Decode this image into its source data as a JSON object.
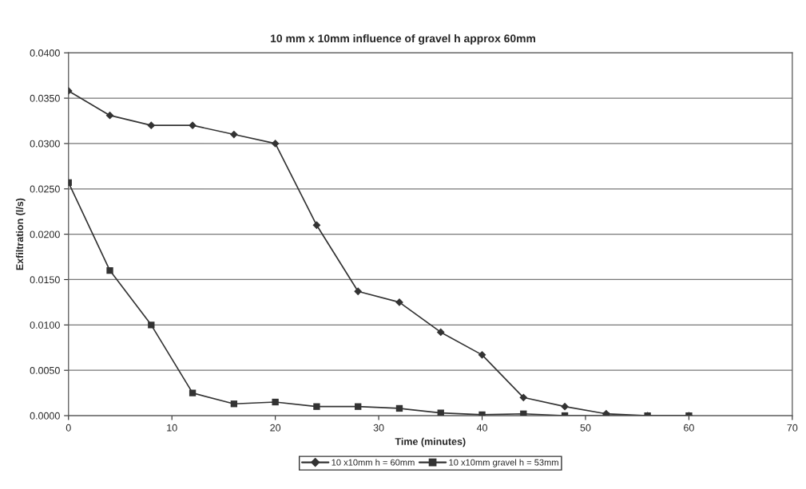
{
  "chart_data": {
    "type": "line",
    "title": "10 mm x 10mm influence of gravel h approx 60mm",
    "xlabel": "Time (minutes)",
    "ylabel": "Exfiltration (l/s)",
    "x": [
      0,
      4,
      8,
      12,
      16,
      20,
      24,
      28,
      32,
      36,
      40,
      44,
      48,
      52,
      56,
      60
    ],
    "series": [
      {
        "name": "10 x10mm h = 60mm",
        "color": "#333333",
        "marker": "diamond",
        "values": [
          0.0358,
          0.0331,
          0.032,
          0.032,
          0.031,
          0.03,
          0.021,
          0.0137,
          0.0125,
          0.0092,
          0.0067,
          0.002,
          0.001,
          0.0002,
          0.0,
          0.0
        ]
      },
      {
        "name": "10 x10mm gravel h = 53mm",
        "color": "#333333",
        "marker": "square",
        "values": [
          0.0257,
          0.016,
          0.01,
          0.0025,
          0.0013,
          0.0015,
          0.001,
          0.001,
          0.0008,
          0.0003,
          0.0001,
          0.0002,
          0.0,
          0.0,
          0.0,
          0.0
        ]
      }
    ],
    "xlim": [
      0,
      70
    ],
    "xticks": [
      0,
      10,
      20,
      30,
      40,
      50,
      60,
      70
    ],
    "ylim": [
      0,
      0.04
    ],
    "yticks": [
      {
        "value": 0,
        "label": "0.0000"
      },
      {
        "value": 0.005,
        "label": "0.0050"
      },
      {
        "value": 0.01,
        "label": "0.0100"
      },
      {
        "value": 0.015,
        "label": "0.0150"
      },
      {
        "value": 0.02,
        "label": "0.0200"
      },
      {
        "value": 0.025,
        "label": "0.0250"
      },
      {
        "value": 0.03,
        "label": "0.0300"
      },
      {
        "value": 0.035,
        "label": "0.0350"
      },
      {
        "value": 0.04,
        "label": "0.0400"
      }
    ],
    "grid": "y",
    "legend": "bottom",
    "line_style": "solid"
  }
}
